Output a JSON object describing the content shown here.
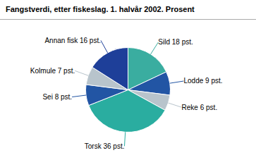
{
  "chart_data": {
    "type": "pie",
    "title": "Fangstverdi, etter fiskeslag. 1. halvår 2002. Prosent",
    "categories": [
      "Sild 18 pst.",
      "Lodde 9 pst.",
      "Reke 6 pst.",
      "Torsk 36 pst.",
      "Sei 8 pst.",
      "Kolmule 7 pst.",
      "Annan fisk 16 pst."
    ],
    "values": [
      18,
      9,
      6,
      36,
      8,
      7,
      16
    ],
    "colors": [
      "#3aada0",
      "#2255a4",
      "#b8c4cc",
      "#2aada0",
      "#2255a4",
      "#b8c4cc",
      "#1e3f99"
    ]
  }
}
